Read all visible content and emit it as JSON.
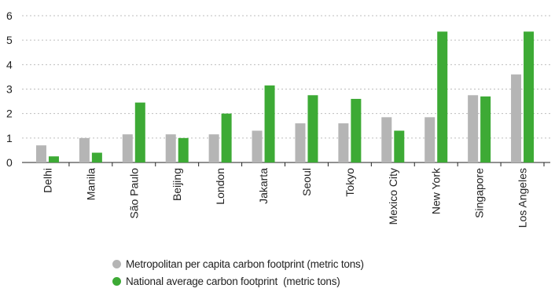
{
  "chart_data": {
    "type": "bar",
    "categories": [
      "Delhi",
      "Manila",
      "São Paulo",
      "Beijing",
      "London",
      "Jakarta",
      "Seoul",
      "Tokyo",
      "Mexico City",
      "New York",
      "Singapore",
      "Los Angeles"
    ],
    "series": [
      {
        "name": "Metropolitan per capita carbon footprint (metric tons)",
        "color": "#b5b5b5",
        "values": [
          0.7,
          1.0,
          1.15,
          1.15,
          1.15,
          1.3,
          1.6,
          1.6,
          1.85,
          1.85,
          2.75,
          3.6
        ]
      },
      {
        "name": "National average carbon footprint  (metric tons)",
        "color": "#3daa35",
        "values": [
          0.25,
          0.4,
          2.45,
          1.0,
          2.0,
          3.15,
          2.75,
          2.6,
          1.3,
          5.35,
          2.7,
          5.35
        ]
      }
    ],
    "ylim": [
      0,
      6
    ],
    "yticks": [
      "0",
      "1",
      "2",
      "3",
      "4",
      "5",
      "6"
    ],
    "grid": true,
    "legend_position": "bottom-left",
    "xlabel": "",
    "ylabel": ""
  }
}
